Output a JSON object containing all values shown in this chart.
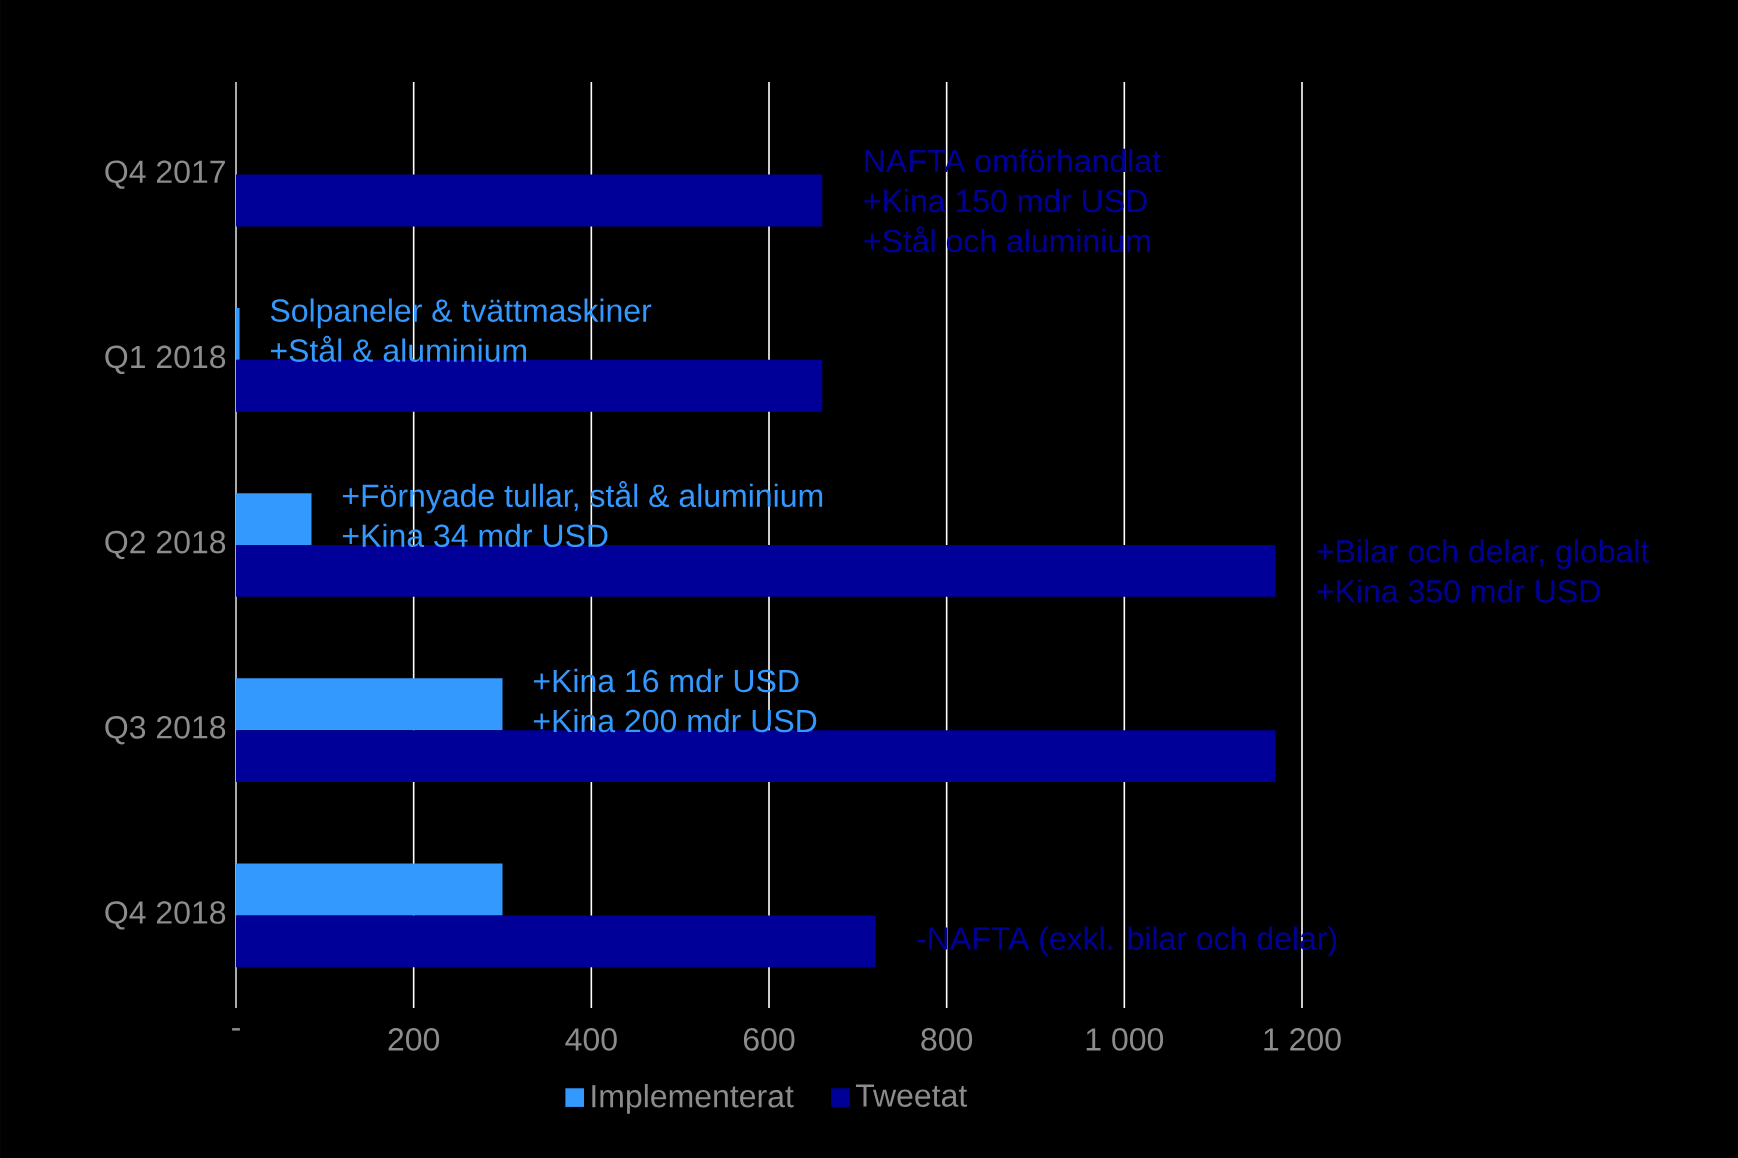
{
  "chart_data": {
    "type": "bar",
    "orientation": "horizontal",
    "categories": [
      "Q4 2017",
      "Q1 2018",
      "Q2 2018",
      "Q3 2018",
      "Q4 2018"
    ],
    "series": [
      {
        "name": "Implementerat",
        "color": "#3399ff",
        "values": [
          null,
          4,
          85,
          300,
          300
        ]
      },
      {
        "name": "Tweetat",
        "color": "#000099",
        "values": [
          660,
          660,
          1170,
          1170,
          720
        ]
      }
    ],
    "xlim": [
      0,
      1200
    ],
    "xticks": [
      {
        "value": 0,
        "label": "-"
      },
      200,
      400,
      600,
      800,
      {
        "value": 1000,
        "label": "1 000"
      },
      {
        "value": 1200,
        "label": "1 200"
      }
    ],
    "grid": "x",
    "legend": "bottom",
    "annotations": [
      {
        "text": "NAFTA omförhandlat",
        "x": 660,
        "y": "Q4 2017"
      },
      {
        "text": "+Kina 150 mdr USD",
        "x": 660,
        "y": "Q4 2017"
      },
      {
        "text": "+Stål och aluminium",
        "x": 660,
        "y": "Q4 2017"
      },
      {
        "text": "Solpaneler & tvättmaskiner",
        "x": 4,
        "y": "Q1 2018"
      },
      {
        "text": "+Stål & aluminium",
        "x": 4,
        "y": "Q1 2018"
      },
      {
        "text": "+Förnyade tullar, stål & aluminium",
        "x": 85,
        "y": "Q2 2018"
      },
      {
        "text": "+Kina 34 mdr USD",
        "x": 85,
        "y": "Q2 2018"
      },
      {
        "text": "+Bilar och delar, globalt",
        "x": 1170,
        "y": "Q2 2018"
      },
      {
        "text": "+Kina 350 mdr USD",
        "x": 1170,
        "y": "Q2 2018"
      },
      {
        "text": "+Kina 16 mdr USD",
        "x": 300,
        "y": "Q3 2018"
      },
      {
        "text": "+Kina 200 mdr USD",
        "x": 300,
        "y": "Q3 2018"
      },
      {
        "text": "-NAFTA (exkl. bilar och delar)",
        "x": 720,
        "y": "Q4 2018"
      }
    ]
  }
}
